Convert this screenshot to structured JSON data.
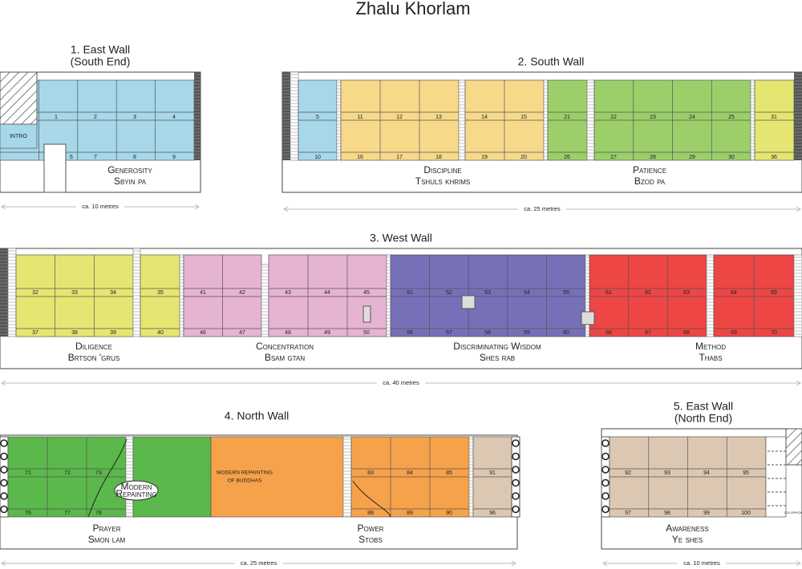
{
  "title": "Zhalu Khorlam",
  "walls": [
    {
      "title": [
        "1. East Wall",
        "(South End)"
      ],
      "sections": [
        {
          "name": "Generosity",
          "tibetan": "Sbyin pa"
        }
      ],
      "scale": "ca. 10 metres",
      "notes": [
        "INTRO"
      ],
      "panels": [
        1,
        2,
        3,
        4,
        6,
        7,
        8,
        9
      ]
    },
    {
      "title": [
        "2. South Wall"
      ],
      "sections": [
        {
          "name": "Discipline",
          "tibetan": "Tshuls khrims"
        },
        {
          "name": "Patience",
          "tibetan": "Bzod pa"
        }
      ],
      "scale": "ca. 25 metres",
      "panels": [
        5,
        11,
        12,
        13,
        14,
        15,
        21,
        22,
        23,
        24,
        25,
        31,
        10,
        16,
        17,
        18,
        19,
        20,
        26,
        27,
        28,
        29,
        30,
        36
      ]
    },
    {
      "title": [
        "3. West Wall"
      ],
      "sections": [
        {
          "name": "Diligence",
          "tibetan": "Brtson 'grus"
        },
        {
          "name": "Concentration",
          "tibetan": "Bsam gtan"
        },
        {
          "name": "Discriminating Wisdom",
          "tibetan": "Shes rab"
        },
        {
          "name": "Method",
          "tibetan": "Thabs"
        }
      ],
      "scale": "ca. 40 metres",
      "panels": [
        32,
        33,
        34,
        35,
        41,
        42,
        43,
        44,
        45,
        51,
        52,
        53,
        54,
        55,
        61,
        62,
        63,
        64,
        65,
        37,
        38,
        39,
        40,
        46,
        47,
        48,
        49,
        50,
        56,
        57,
        58,
        59,
        60,
        66,
        67,
        68,
        69,
        70
      ]
    },
    {
      "title": [
        "4. North Wall"
      ],
      "sections": [
        {
          "name": "Prayer",
          "tibetan": "Smon lam"
        },
        {
          "name": "Power",
          "tibetan": "Stobs"
        }
      ],
      "scale": "ca. 25 metres",
      "notes": [
        "Modern",
        "Repainting",
        "MODERN REPAINTING",
        "OF BUDDHAS"
      ],
      "panels": [
        71,
        72,
        73,
        83,
        84,
        85,
        91,
        76,
        77,
        78,
        88,
        89,
        90,
        96
      ]
    },
    {
      "title": [
        "5. East Wall",
        "(North End)"
      ],
      "sections": [
        {
          "name": "Awareness",
          "tibetan": "Ye shes"
        }
      ],
      "scale": "ca. 10 metres",
      "notes": [
        "COLOPHON"
      ],
      "panels": [
        92,
        93,
        94,
        95,
        97,
        98,
        99,
        100
      ]
    }
  ]
}
